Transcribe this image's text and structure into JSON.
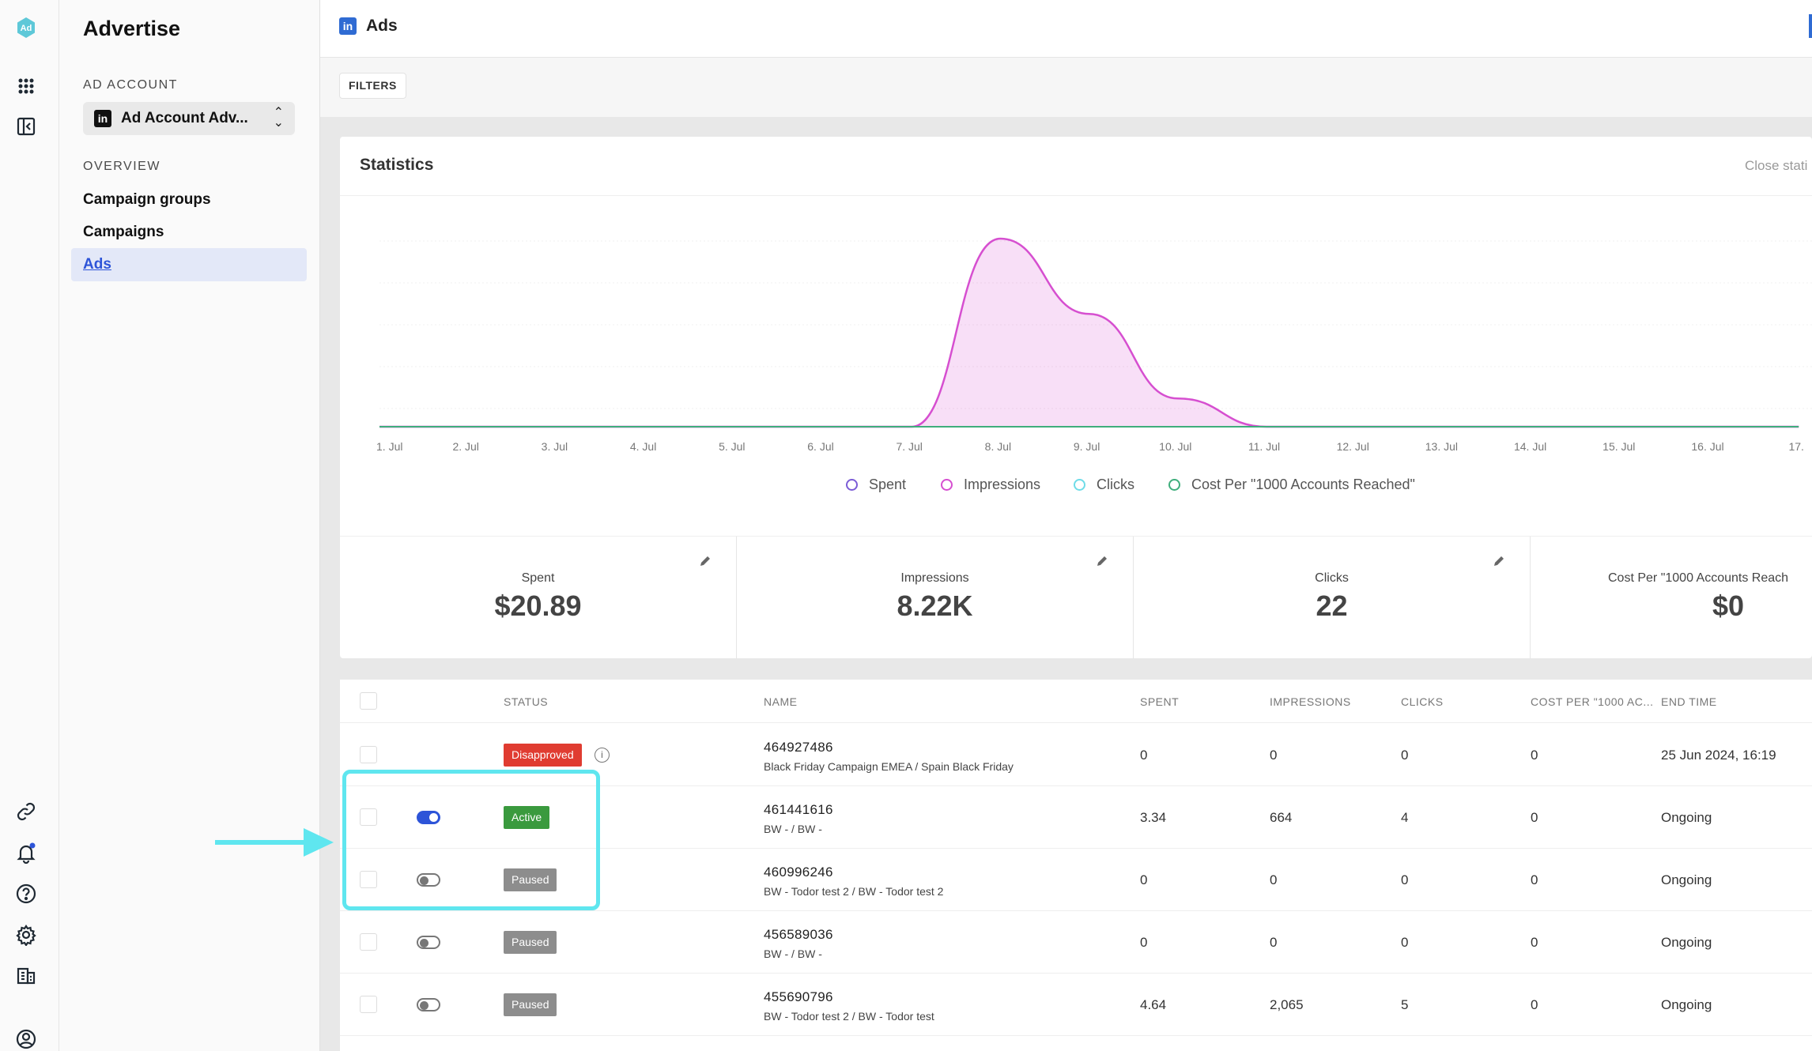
{
  "rail": {
    "logo": "Ad",
    "icons": [
      "apps-grid-icon",
      "sidebar-toggle-icon",
      "link-icon",
      "bell-icon",
      "help-icon",
      "settings-icon",
      "building-icon",
      "user-icon"
    ]
  },
  "sidebar": {
    "title": "Advertise",
    "ad_account_label": "AD ACCOUNT",
    "account_name": "Ad Account Adv...",
    "overview_label": "OVERVIEW",
    "items": [
      {
        "label": "Campaign groups"
      },
      {
        "label": "Campaigns"
      },
      {
        "label": "Ads"
      }
    ]
  },
  "header": {
    "title": "Ads",
    "linkedin_glyph": "in"
  },
  "filters": {
    "label": "FILTERS"
  },
  "stats": {
    "title": "Statistics",
    "close_label": "Close stati",
    "legend": [
      {
        "name": "Spent",
        "color": "#7b5cd6"
      },
      {
        "name": "Impressions",
        "color": "#d64fd0"
      },
      {
        "name": "Clicks",
        "color": "#6fdce8"
      },
      {
        "name": "Cost Per \"1000 Accounts Reached\"",
        "color": "#3fae7c"
      }
    ],
    "kpis": [
      {
        "label": "Spent",
        "value": "$20.89"
      },
      {
        "label": "Impressions",
        "value": "8.22K"
      },
      {
        "label": "Clicks",
        "value": "22"
      },
      {
        "label": "Cost Per \"1000 Accounts Reach",
        "value": "$0"
      }
    ]
  },
  "chart_data": {
    "type": "area",
    "x": [
      "1. Jul",
      "2. Jul",
      "3. Jul",
      "4. Jul",
      "5. Jul",
      "6. Jul",
      "7. Jul",
      "8. Jul",
      "9. Jul",
      "10. Jul",
      "11. Jul",
      "12. Jul",
      "13. Jul",
      "14. Jul",
      "15. Jul",
      "16. Jul",
      "17."
    ],
    "series": [
      {
        "name": "Impressions",
        "color": "#d64fd0",
        "values": [
          0,
          0,
          0,
          0,
          0,
          0,
          0,
          1,
          0.6,
          0.15,
          0,
          0,
          0,
          0,
          0,
          0,
          0
        ]
      },
      {
        "name": "Cost Per \"1000 Accounts Reached\"",
        "color": "#3fae7c",
        "values": [
          0,
          0,
          0,
          0,
          0,
          0,
          0,
          0,
          0,
          0,
          0,
          0,
          0,
          0,
          0,
          0,
          0
        ]
      }
    ],
    "grid": true,
    "legend_position": "bottom"
  },
  "table": {
    "columns": [
      "STATUS",
      "NAME",
      "SPENT",
      "IMPRESSIONS",
      "CLICKS",
      "COST PER \"1000 AC...",
      "END TIME"
    ],
    "rows": [
      {
        "toggle": "none",
        "status": "Disapproved",
        "status_color": "#e03c31",
        "info": "i",
        "id": "464927486",
        "sub": "Black Friday Campaign EMEA / Spain Black Friday",
        "spent": "0",
        "impressions": "0",
        "clicks": "0",
        "cpm": "0",
        "end": "25 Jun 2024, 16:19"
      },
      {
        "toggle": "on",
        "status": "Active",
        "status_color": "#3a9a3e",
        "id": "461441616",
        "sub": "BW -  / BW -",
        "spent": "3.34",
        "impressions": "664",
        "clicks": "4",
        "cpm": "0",
        "end": "Ongoing"
      },
      {
        "toggle": "off",
        "status": "Paused",
        "status_color": "#8d8d8d",
        "id": "460996246",
        "sub": "BW - Todor test 2 / BW - Todor test 2",
        "spent": "0",
        "impressions": "0",
        "clicks": "0",
        "cpm": "0",
        "end": "Ongoing"
      },
      {
        "toggle": "off",
        "status": "Paused",
        "status_color": "#8d8d8d",
        "id": "456589036",
        "sub": "BW -  / BW -",
        "spent": "0",
        "impressions": "0",
        "clicks": "0",
        "cpm": "0",
        "end": "Ongoing"
      },
      {
        "toggle": "off",
        "status": "Paused",
        "status_color": "#8d8d8d",
        "id": "455690796",
        "sub": "BW - Todor test 2 / BW - Todor test",
        "spent": "4.64",
        "impressions": "2,065",
        "clicks": "5",
        "cpm": "0",
        "end": "Ongoing"
      }
    ]
  },
  "annotation": {
    "highlight_color": "#5fe6ef"
  }
}
